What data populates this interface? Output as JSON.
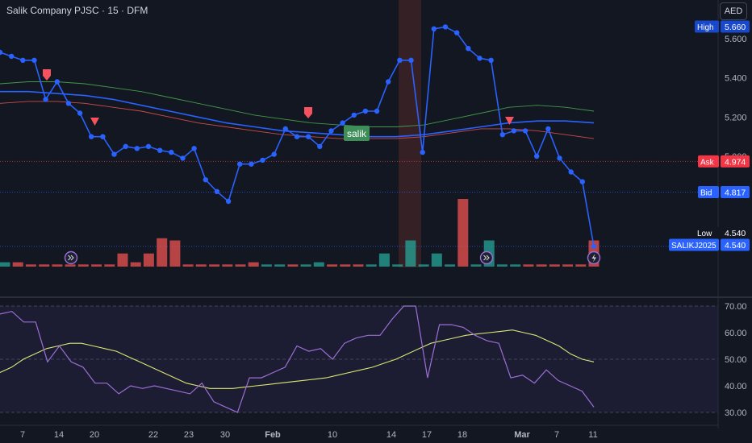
{
  "header": {
    "title": "Salik Company PJSC · 15 · DFM",
    "currency": "AED"
  },
  "colors": {
    "background": "#131722",
    "price_line": "#2962ff",
    "up_volume": "#26a69a",
    "down_volume": "#ef5350",
    "ask": "#f23645",
    "bid": "#2962ff",
    "rsi": "#9c6fd6",
    "rsi_ma": "#dce775",
    "highlight": "#3a2226"
  },
  "price_scale": {
    "ticks": [
      "5.600",
      "5.400",
      "5.200",
      "5.000"
    ],
    "labels": [
      {
        "tag": "High",
        "value": "5.660"
      },
      {
        "tag": "Ask",
        "value": "4.974"
      },
      {
        "tag": "Bid",
        "value": "4.817"
      },
      {
        "tag": "Low",
        "value": "4.540"
      },
      {
        "tag": "SALIKJ2025",
        "value": "4.540"
      }
    ]
  },
  "markers": {
    "label": "salik"
  },
  "rsi_scale": {
    "ticks": [
      "70.00",
      "60.00",
      "50.00",
      "40.00",
      "30.00"
    ]
  },
  "time_axis": {
    "labels": [
      "7",
      "14",
      "20",
      "22",
      "23",
      "30",
      "Feb",
      "10",
      "14",
      "17",
      "18",
      "Mar",
      "7",
      "11"
    ]
  },
  "chart_data": {
    "type": "line",
    "title": "Salik Company PJSC · 15 · DFM",
    "price": [
      5.53,
      5.51,
      5.49,
      5.49,
      5.29,
      5.38,
      5.27,
      5.22,
      5.1,
      5.1,
      5.01,
      5.05,
      5.04,
      5.05,
      5.03,
      5.02,
      4.99,
      5.04,
      4.88,
      4.82,
      4.77,
      4.96,
      4.96,
      4.98,
      5.01,
      5.14,
      5.1,
      5.1,
      5.05,
      5.13,
      5.17,
      5.21,
      5.23,
      5.23,
      5.38,
      5.49,
      5.49,
      5.02,
      5.65,
      5.66,
      5.63,
      5.55,
      5.5,
      5.49,
      5.11,
      5.13,
      5.13,
      5.0,
      5.14,
      4.99,
      4.92,
      4.87,
      4.54
    ],
    "volume": [
      {
        "v": 2,
        "dir": "up"
      },
      {
        "v": 2,
        "dir": "down"
      },
      {
        "v": 1,
        "dir": "down"
      },
      {
        "v": 1,
        "dir": "down"
      },
      {
        "v": 1,
        "dir": "down"
      },
      {
        "v": 1,
        "dir": "down"
      },
      {
        "v": 1,
        "dir": "down"
      },
      {
        "v": 1,
        "dir": "down"
      },
      {
        "v": 1,
        "dir": "down"
      },
      {
        "v": 6,
        "dir": "down"
      },
      {
        "v": 2,
        "dir": "down"
      },
      {
        "v": 6,
        "dir": "down"
      },
      {
        "v": 13,
        "dir": "down"
      },
      {
        "v": 12,
        "dir": "down"
      },
      {
        "v": 1,
        "dir": "down"
      },
      {
        "v": 1,
        "dir": "down"
      },
      {
        "v": 1,
        "dir": "down"
      },
      {
        "v": 1,
        "dir": "down"
      },
      {
        "v": 1,
        "dir": "down"
      },
      {
        "v": 2,
        "dir": "down"
      },
      {
        "v": 1,
        "dir": "up"
      },
      {
        "v": 1,
        "dir": "up"
      },
      {
        "v": 1,
        "dir": "down"
      },
      {
        "v": 1,
        "dir": "up"
      },
      {
        "v": 2,
        "dir": "up"
      },
      {
        "v": 1,
        "dir": "down"
      },
      {
        "v": 1,
        "dir": "down"
      },
      {
        "v": 1,
        "dir": "down"
      },
      {
        "v": 1,
        "dir": "up"
      },
      {
        "v": 6,
        "dir": "up"
      },
      {
        "v": 1,
        "dir": "up"
      },
      {
        "v": 12,
        "dir": "up"
      },
      {
        "v": 1,
        "dir": "up"
      },
      {
        "v": 6,
        "dir": "up"
      },
      {
        "v": 1,
        "dir": "up"
      },
      {
        "v": 31,
        "dir": "down"
      },
      {
        "v": 1,
        "dir": "up"
      },
      {
        "v": 12,
        "dir": "up"
      },
      {
        "v": 1,
        "dir": "up"
      },
      {
        "v": 1,
        "dir": "up"
      },
      {
        "v": 1,
        "dir": "down"
      },
      {
        "v": 1,
        "dir": "down"
      },
      {
        "v": 1,
        "dir": "down"
      },
      {
        "v": 1,
        "dir": "down"
      },
      {
        "v": 1,
        "dir": "down"
      },
      {
        "v": 12,
        "dir": "down"
      }
    ],
    "rsi": [
      67,
      68,
      64,
      64,
      49,
      55,
      49,
      47,
      41,
      41,
      37,
      40,
      39,
      40,
      39,
      38,
      37,
      41,
      34,
      32,
      30,
      43,
      43,
      45,
      47,
      55,
      53,
      54,
      50,
      56,
      58,
      59,
      59,
      65,
      70,
      70,
      43,
      63,
      63,
      62,
      59,
      57,
      56,
      43,
      44,
      41,
      46,
      42,
      40,
      38,
      32
    ],
    "rsi_ma": [
      45,
      47,
      50,
      52,
      54,
      55,
      56,
      56,
      55,
      54,
      53,
      51,
      49,
      47,
      45,
      43,
      41,
      40,
      39,
      39,
      39,
      39.5,
      40,
      40.5,
      41,
      41.5,
      42,
      42.5,
      43,
      44,
      45,
      46,
      47,
      48.5,
      50,
      52,
      54,
      56,
      57,
      58,
      59,
      59.5,
      60,
      60.5,
      61,
      60,
      59,
      57,
      55,
      52,
      50,
      49
    ],
    "series": [
      {
        "name": "Keltner upper",
        "values": [
          5.37,
          5.38,
          5.38,
          5.37,
          5.35,
          5.33,
          5.3,
          5.27,
          5.24,
          5.21,
          5.19,
          5.17,
          5.16,
          5.15,
          5.15,
          5.16,
          5.19,
          5.22,
          5.25,
          5.26,
          5.25,
          5.23
        ]
      },
      {
        "name": "Keltner basis",
        "values": [
          5.33,
          5.33,
          5.32,
          5.31,
          5.29,
          5.26,
          5.23,
          5.2,
          5.17,
          5.15,
          5.13,
          5.12,
          5.11,
          5.1,
          5.1,
          5.11,
          5.13,
          5.15,
          5.17,
          5.18,
          5.18,
          5.17
        ]
      },
      {
        "name": "Keltner lower",
        "values": [
          5.27,
          5.28,
          5.28,
          5.27,
          5.25,
          5.23,
          5.2,
          5.17,
          5.15,
          5.13,
          5.11,
          5.1,
          5.09,
          5.09,
          5.09,
          5.1,
          5.12,
          5.14,
          5.14,
          5.13,
          5.11,
          5.09
        ]
      }
    ],
    "ylim": [
      4.45,
      5.75
    ],
    "rsi_ylim": [
      25,
      75
    ]
  }
}
